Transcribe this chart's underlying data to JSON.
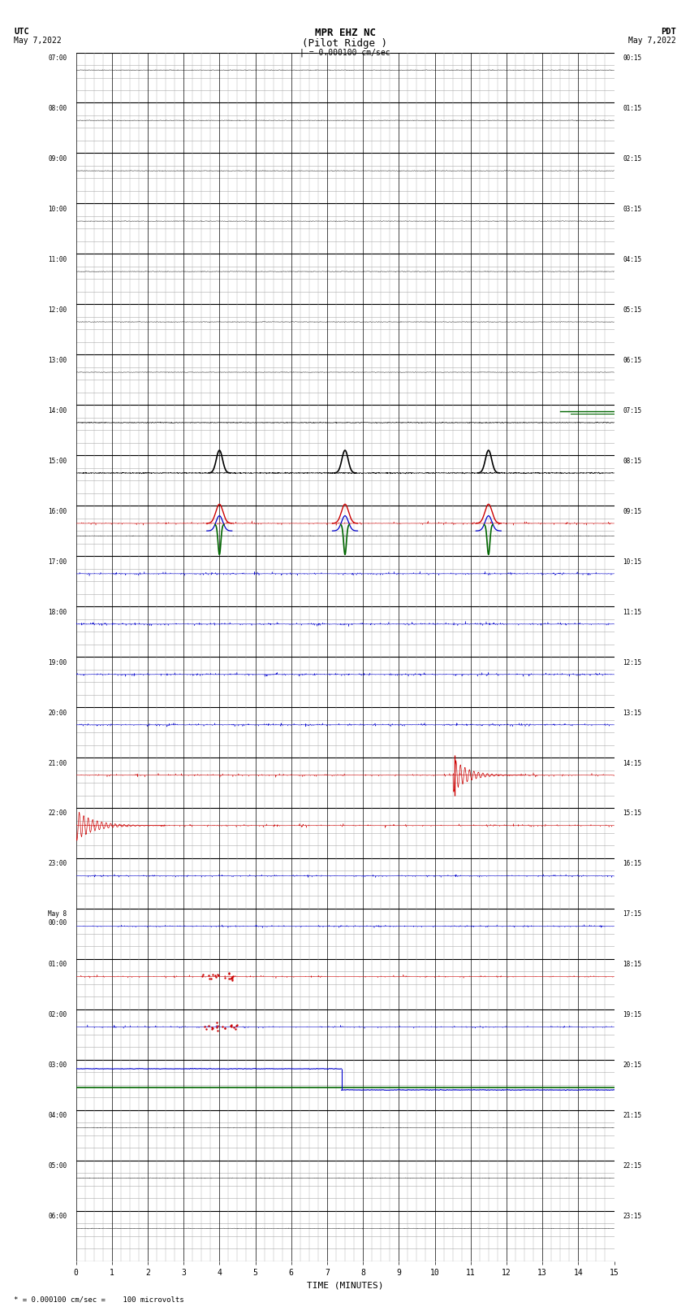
{
  "title_line1": "MPR EHZ NC",
  "title_line2": "(Pilot Ridge )",
  "scale_text": "| = 0.000100 cm/sec",
  "left_label1": "UTC",
  "left_label2": "May 7,2022",
  "right_label1": "PDT",
  "right_label2": "May 7,2022",
  "bottom_label": "* = 0.000100 cm/sec =    100 microvolts",
  "xlabel": "TIME (MINUTES)",
  "xlim": [
    0,
    15
  ],
  "xticks": [
    0,
    1,
    2,
    3,
    4,
    5,
    6,
    7,
    8,
    9,
    10,
    11,
    12,
    13,
    14,
    15
  ],
  "bg_color": "#ffffff",
  "grid_major_color": "#000000",
  "grid_minor_color": "#aaaaaa",
  "num_rows": 24,
  "rows": [
    {
      "label_left": "07:00",
      "label_right": "00:15"
    },
    {
      "label_left": "08:00",
      "label_right": "01:15"
    },
    {
      "label_left": "09:00",
      "label_right": "02:15"
    },
    {
      "label_left": "10:00",
      "label_right": "03:15"
    },
    {
      "label_left": "11:00",
      "label_right": "04:15"
    },
    {
      "label_left": "12:00",
      "label_right": "05:15"
    },
    {
      "label_left": "13:00",
      "label_right": "06:15"
    },
    {
      "label_left": "14:00",
      "label_right": "07:15"
    },
    {
      "label_left": "15:00",
      "label_right": "08:15"
    },
    {
      "label_left": "16:00",
      "label_right": "09:15"
    },
    {
      "label_left": "17:00",
      "label_right": "10:15"
    },
    {
      "label_left": "18:00",
      "label_right": "11:15"
    },
    {
      "label_left": "19:00",
      "label_right": "12:15"
    },
    {
      "label_left": "20:00",
      "label_right": "13:15"
    },
    {
      "label_left": "21:00",
      "label_right": "14:15"
    },
    {
      "label_left": "22:00",
      "label_right": "15:15"
    },
    {
      "label_left": "23:00",
      "label_right": "16:15"
    },
    {
      "label_left": "May 8\n00:00",
      "label_right": "17:15"
    },
    {
      "label_left": "01:00",
      "label_right": "18:15"
    },
    {
      "label_left": "02:00",
      "label_right": "19:15"
    },
    {
      "label_left": "03:00",
      "label_right": "20:15"
    },
    {
      "label_left": "04:00",
      "label_right": "21:15"
    },
    {
      "label_left": "05:00",
      "label_right": "22:15"
    },
    {
      "label_left": "06:00",
      "label_right": "23:15"
    }
  ]
}
